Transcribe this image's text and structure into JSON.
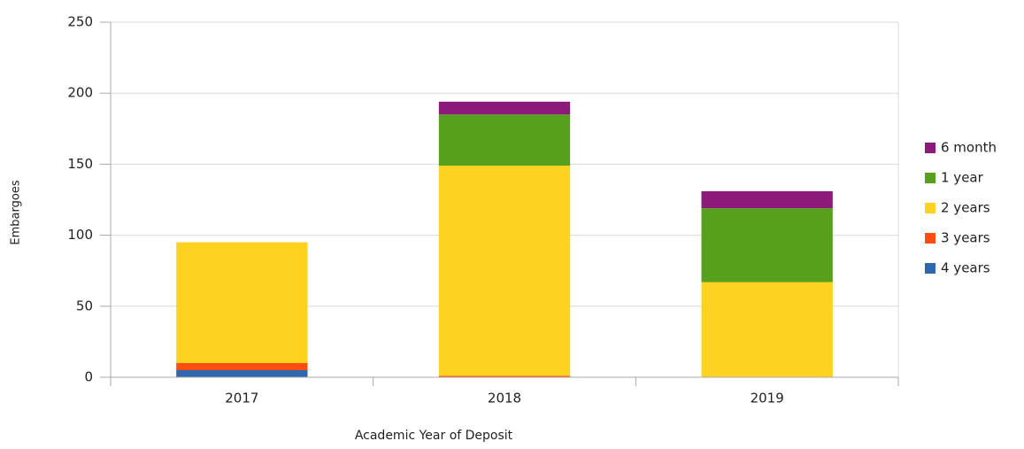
{
  "chart_data": {
    "type": "stacked_bar",
    "y_label": "Embargoes",
    "x_label": "Academic Year of Deposit",
    "categories": [
      "2017",
      "2018",
      "2019"
    ],
    "series": [
      {
        "name": "4 years",
        "color": "#2f66b0",
        "values": [
          5,
          0,
          0
        ]
      },
      {
        "name": "3 years",
        "color": "#fc4c10",
        "values": [
          5,
          1,
          0
        ]
      },
      {
        "name": "2 years",
        "color": "#fdd320",
        "values": [
          85,
          148,
          67
        ]
      },
      {
        "name": "1 year",
        "color": "#56a01e",
        "values": [
          0,
          36,
          52
        ]
      },
      {
        "name": "6 month",
        "color": "#8b1a7a",
        "values": [
          0,
          9,
          12
        ]
      }
    ],
    "ylim": [
      0,
      250
    ],
    "yticks": [
      0,
      50,
      100,
      150,
      200,
      250
    ],
    "grid": true,
    "legend": "right"
  }
}
